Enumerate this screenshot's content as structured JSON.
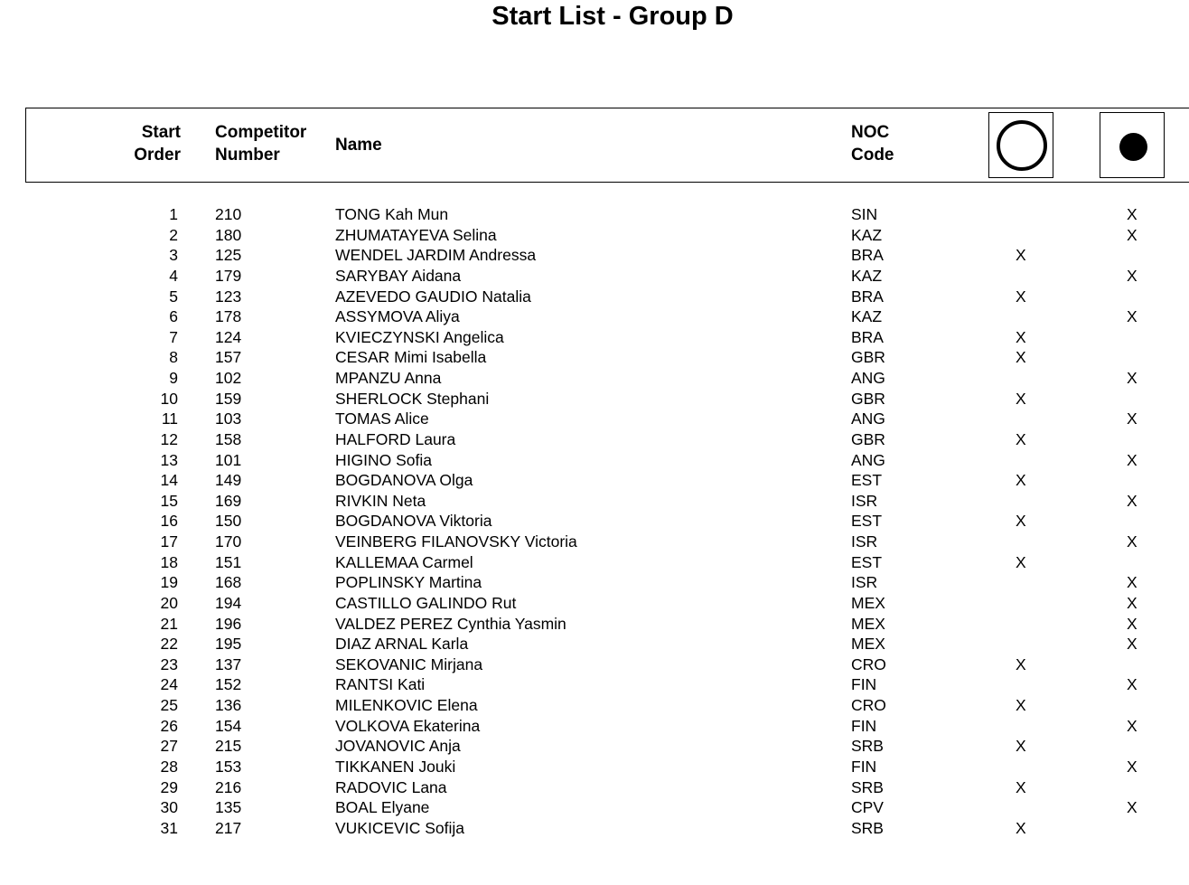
{
  "title": "Start List - Group D",
  "header": {
    "start_order": [
      "Start",
      "Order"
    ],
    "competitor_number": [
      "Competitor",
      "Number"
    ],
    "name": "Name",
    "noc_code": [
      "NOC",
      "Code"
    ],
    "icons": [
      "open-circle-icon",
      "filled-circle-icon"
    ]
  },
  "rows": [
    {
      "order": "1",
      "number": "210",
      "name": "TONG Kah Mun",
      "noc": "SIN",
      "open": "",
      "filled": "X"
    },
    {
      "order": "2",
      "number": "180",
      "name": "ZHUMATAYEVA Selina",
      "noc": "KAZ",
      "open": "",
      "filled": "X"
    },
    {
      "order": "3",
      "number": "125",
      "name": "WENDEL JARDIM Andressa",
      "noc": "BRA",
      "open": "X",
      "filled": ""
    },
    {
      "order": "4",
      "number": "179",
      "name": "SARYBAY Aidana",
      "noc": "KAZ",
      "open": "",
      "filled": "X"
    },
    {
      "order": "5",
      "number": "123",
      "name": "AZEVEDO GAUDIO Natalia",
      "noc": "BRA",
      "open": "X",
      "filled": ""
    },
    {
      "order": "6",
      "number": "178",
      "name": "ASSYMOVA Aliya",
      "noc": "KAZ",
      "open": "",
      "filled": "X"
    },
    {
      "order": "7",
      "number": "124",
      "name": "KVIECZYNSKI Angelica",
      "noc": "BRA",
      "open": "X",
      "filled": ""
    },
    {
      "order": "8",
      "number": "157",
      "name": "CESAR Mimi Isabella",
      "noc": "GBR",
      "open": "X",
      "filled": ""
    },
    {
      "order": "9",
      "number": "102",
      "name": "MPANZU Anna",
      "noc": "ANG",
      "open": "",
      "filled": "X"
    },
    {
      "order": "10",
      "number": "159",
      "name": "SHERLOCK Stephani",
      "noc": "GBR",
      "open": "X",
      "filled": ""
    },
    {
      "order": "11",
      "number": "103",
      "name": "TOMAS Alice",
      "noc": "ANG",
      "open": "",
      "filled": "X"
    },
    {
      "order": "12",
      "number": "158",
      "name": "HALFORD Laura",
      "noc": "GBR",
      "open": "X",
      "filled": ""
    },
    {
      "order": "13",
      "number": "101",
      "name": "HIGINO Sofia",
      "noc": "ANG",
      "open": "",
      "filled": "X"
    },
    {
      "order": "14",
      "number": "149",
      "name": "BOGDANOVA Olga",
      "noc": "EST",
      "open": "X",
      "filled": ""
    },
    {
      "order": "15",
      "number": "169",
      "name": "RIVKIN Neta",
      "noc": "ISR",
      "open": "",
      "filled": "X"
    },
    {
      "order": "16",
      "number": "150",
      "name": "BOGDANOVA Viktoria",
      "noc": "EST",
      "open": "X",
      "filled": ""
    },
    {
      "order": "17",
      "number": "170",
      "name": "VEINBERG FILANOVSKY Victoria",
      "noc": "ISR",
      "open": "",
      "filled": "X"
    },
    {
      "order": "18",
      "number": "151",
      "name": "KALLEMAA Carmel",
      "noc": "EST",
      "open": "X",
      "filled": ""
    },
    {
      "order": "19",
      "number": "168",
      "name": "POPLINSKY Martina",
      "noc": "ISR",
      "open": "",
      "filled": "X"
    },
    {
      "order": "20",
      "number": "194",
      "name": "CASTILLO GALINDO Rut",
      "noc": "MEX",
      "open": "",
      "filled": "X"
    },
    {
      "order": "21",
      "number": "196",
      "name": "VALDEZ PEREZ Cynthia Yasmin",
      "noc": "MEX",
      "open": "",
      "filled": "X"
    },
    {
      "order": "22",
      "number": "195",
      "name": "DIAZ ARNAL Karla",
      "noc": "MEX",
      "open": "",
      "filled": "X"
    },
    {
      "order": "23",
      "number": "137",
      "name": "SEKOVANIC Mirjana",
      "noc": "CRO",
      "open": "X",
      "filled": ""
    },
    {
      "order": "24",
      "number": "152",
      "name": "RANTSI Kati",
      "noc": "FIN",
      "open": "",
      "filled": "X"
    },
    {
      "order": "25",
      "number": "136",
      "name": "MILENKOVIC Elena",
      "noc": "CRO",
      "open": "X",
      "filled": ""
    },
    {
      "order": "26",
      "number": "154",
      "name": "VOLKOVA Ekaterina",
      "noc": "FIN",
      "open": "",
      "filled": "X"
    },
    {
      "order": "27",
      "number": "215",
      "name": "JOVANOVIC Anja",
      "noc": "SRB",
      "open": "X",
      "filled": ""
    },
    {
      "order": "28",
      "number": "153",
      "name": "TIKKANEN Jouki",
      "noc": "FIN",
      "open": "",
      "filled": "X"
    },
    {
      "order": "29",
      "number": "216",
      "name": "RADOVIC Lana",
      "noc": "SRB",
      "open": "X",
      "filled": ""
    },
    {
      "order": "30",
      "number": "135",
      "name": "BOAL Elyane",
      "noc": "CPV",
      "open": "",
      "filled": "X"
    },
    {
      "order": "31",
      "number": "217",
      "name": "VUKICEVIC Sofija",
      "noc": "SRB",
      "open": "X",
      "filled": ""
    }
  ]
}
